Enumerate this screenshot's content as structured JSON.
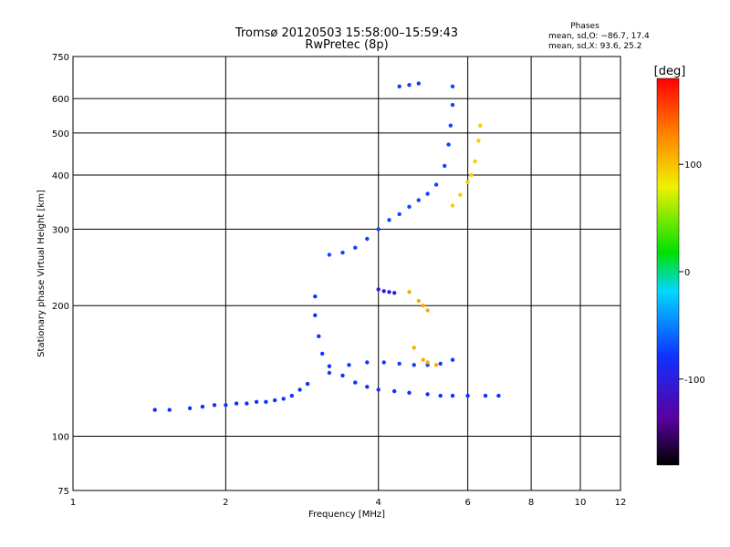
{
  "chart_data": {
    "type": "scatter",
    "title": "Tromsø 20120503 15:58:00–15:59:43",
    "subtitle": "RwPretec (8p)",
    "xlabel": "Frequency [MHz]",
    "ylabel": "Stationary phase Virtual Height [km]",
    "x_scale": "log",
    "y_scale": "log",
    "xlim": [
      1,
      12
    ],
    "ylim": [
      75,
      750
    ],
    "x_ticks": [
      1,
      2,
      4,
      6,
      8,
      10,
      12
    ],
    "y_ticks": [
      75,
      100,
      200,
      300,
      400,
      500,
      600,
      750
    ],
    "x_gridlines": [
      2,
      4,
      6,
      8,
      10
    ],
    "y_gridlines": [
      100,
      200,
      300,
      400,
      500,
      600
    ],
    "grid": true,
    "phases_stats": {
      "heading": "Phases",
      "line_o": "mean, sd,O: −86.7, 17.4",
      "line_x": "mean, sd,X:  93.6, 25.2"
    },
    "colorbar": {
      "label": "[deg]",
      "range": [
        -180,
        180
      ],
      "ticks": [
        100,
        0,
        -100
      ],
      "colormap": "rainbow-black-to-red"
    },
    "traces": [
      {
        "description": "E-region lower trace",
        "phase": -100,
        "points": [
          [
            1.45,
            115
          ],
          [
            1.55,
            115
          ],
          [
            1.7,
            116
          ],
          [
            1.8,
            117
          ],
          [
            1.9,
            118
          ],
          [
            2.0,
            118
          ],
          [
            2.1,
            119
          ],
          [
            2.2,
            119
          ],
          [
            2.3,
            120
          ],
          [
            2.4,
            120
          ],
          [
            2.5,
            121
          ],
          [
            2.6,
            122
          ],
          [
            2.7,
            124
          ],
          [
            2.8,
            128
          ],
          [
            2.9,
            132
          ]
        ]
      },
      {
        "description": "F-region O-mode low branch",
        "phase": -100,
        "points": [
          [
            3.0,
            210
          ],
          [
            3.0,
            190
          ],
          [
            3.05,
            170
          ],
          [
            3.1,
            155
          ],
          [
            3.2,
            145
          ],
          [
            3.4,
            138
          ],
          [
            3.6,
            133
          ],
          [
            3.8,
            130
          ],
          [
            4.0,
            128
          ],
          [
            4.3,
            127
          ],
          [
            4.6,
            126
          ],
          [
            5.0,
            125
          ],
          [
            5.3,
            124
          ],
          [
            5.6,
            124
          ],
          [
            6.0,
            124
          ],
          [
            6.5,
            124
          ],
          [
            6.9,
            124
          ]
        ]
      },
      {
        "description": "F-region O-mode secondary branch",
        "phase": -95,
        "points": [
          [
            3.2,
            140
          ],
          [
            3.5,
            146
          ],
          [
            3.8,
            148
          ],
          [
            4.1,
            148
          ],
          [
            4.4,
            147
          ],
          [
            4.7,
            146
          ],
          [
            5.0,
            146
          ],
          [
            5.3,
            147
          ],
          [
            5.6,
            150
          ]
        ]
      },
      {
        "description": "F2 O-mode main trace",
        "phase": -90,
        "points": [
          [
            3.2,
            262
          ],
          [
            3.4,
            265
          ],
          [
            3.6,
            272
          ],
          [
            3.8,
            285
          ],
          [
            4.0,
            300
          ],
          [
            4.2,
            315
          ],
          [
            4.4,
            325
          ],
          [
            4.6,
            338
          ],
          [
            4.8,
            350
          ],
          [
            5.0,
            362
          ],
          [
            5.2,
            380
          ],
          [
            5.4,
            420
          ],
          [
            5.5,
            470
          ],
          [
            5.55,
            520
          ],
          [
            5.6,
            580
          ],
          [
            5.6,
            640
          ]
        ]
      },
      {
        "description": "F2 X-mode trace",
        "phase": 95,
        "points": [
          [
            5.6,
            340
          ],
          [
            5.8,
            360
          ],
          [
            6.0,
            385
          ],
          [
            6.1,
            400
          ],
          [
            6.2,
            430
          ],
          [
            6.3,
            480
          ],
          [
            6.35,
            520
          ]
        ]
      },
      {
        "description": "Oblique cluster near 215 km",
        "phase": -115,
        "points": [
          [
            4.0,
            218
          ],
          [
            4.1,
            216
          ],
          [
            4.2,
            215
          ],
          [
            4.3,
            214
          ]
        ]
      },
      {
        "description": "Scattered X-mode points near 200 km",
        "phase": 110,
        "points": [
          [
            4.6,
            215
          ],
          [
            4.8,
            205
          ],
          [
            4.9,
            200
          ],
          [
            5.0,
            195
          ],
          [
            4.7,
            160
          ],
          [
            4.9,
            150
          ],
          [
            5.0,
            148
          ],
          [
            5.2,
            146
          ]
        ]
      },
      {
        "description": "High O-mode cluster",
        "phase": -95,
        "points": [
          [
            4.4,
            640
          ],
          [
            4.6,
            645
          ],
          [
            4.8,
            650
          ]
        ]
      }
    ]
  }
}
